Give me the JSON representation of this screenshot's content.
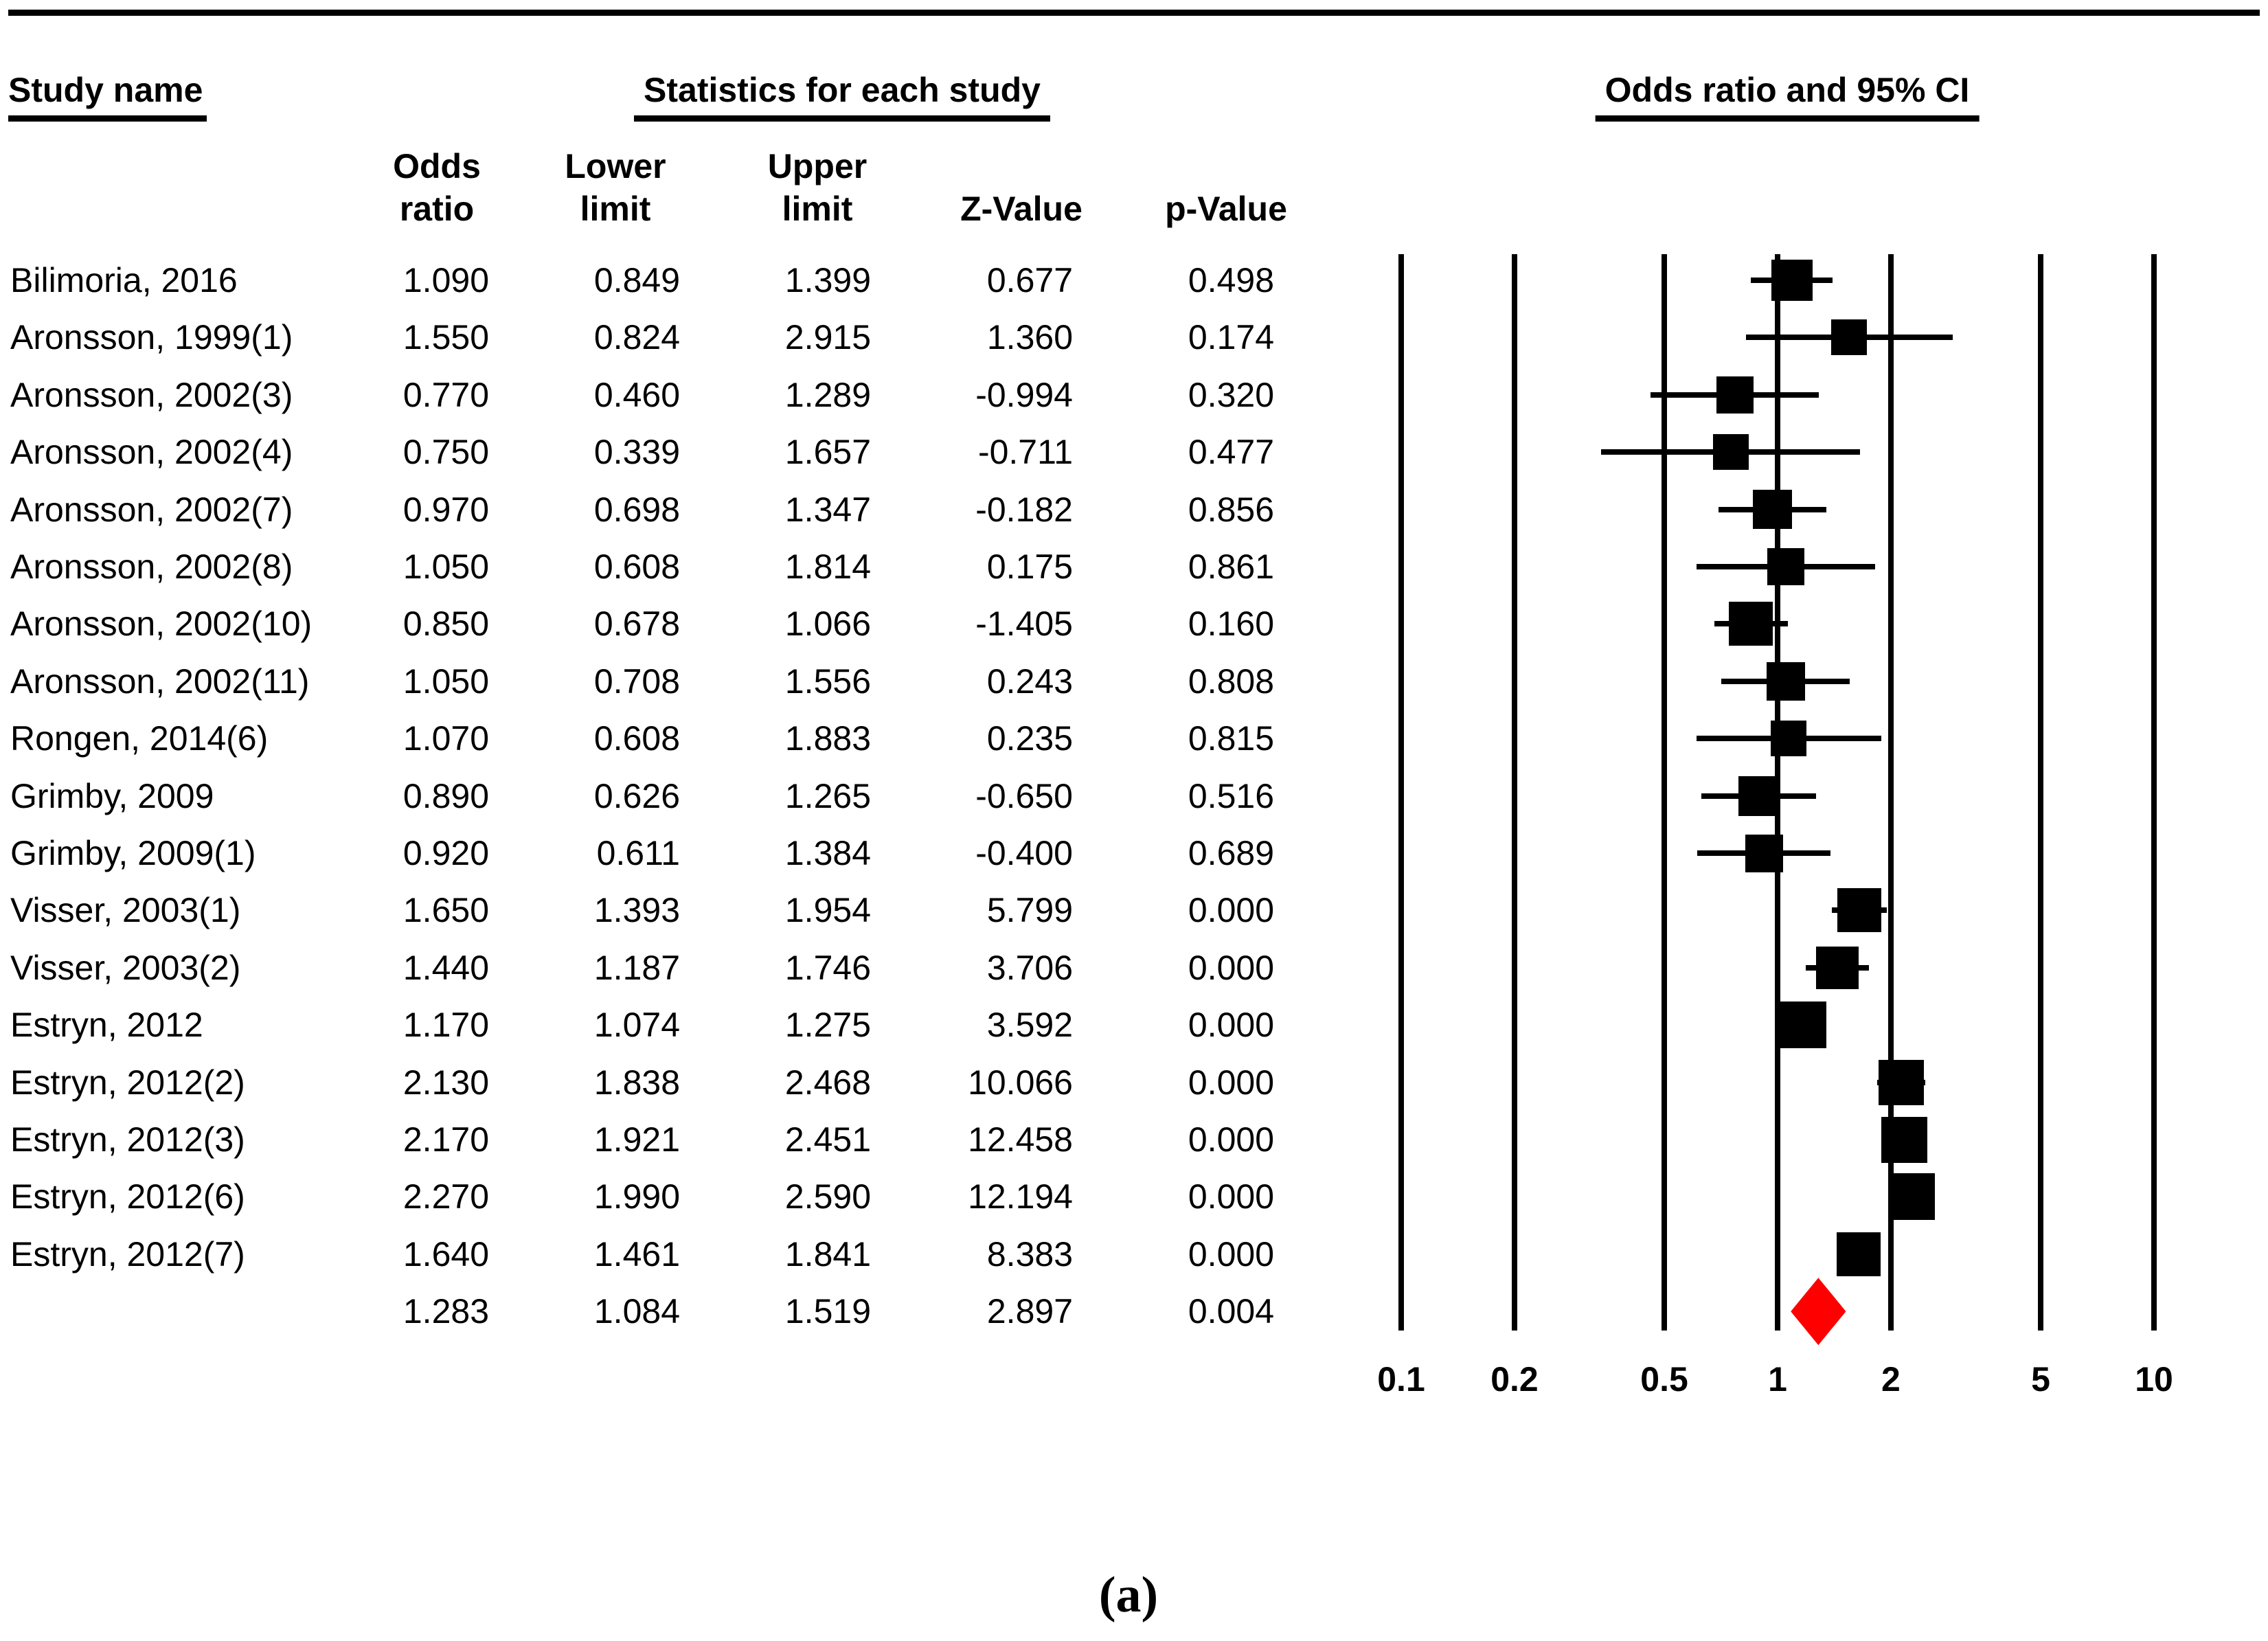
{
  "header": {
    "study_heading": "Study name",
    "stats_heading": "Statistics for each study",
    "plot_heading": "Odds ratio and 95% CI",
    "columns": [
      {
        "line1": "Odds",
        "line2": "ratio"
      },
      {
        "line1": "Lower",
        "line2": "limit"
      },
      {
        "line1": "Upper",
        "line2": "limit"
      },
      {
        "line1": "",
        "line2": "Z-Value"
      },
      {
        "line1": "",
        "line2": "p-Value"
      }
    ]
  },
  "caption": "(a)",
  "colors": {
    "marker": "#000000",
    "summary_diamond": "#FF0000",
    "line": "#000000"
  },
  "chart_data": {
    "type": "scatter",
    "subtype": "forest-plot",
    "title": "Odds ratio and 95% CI",
    "x_scale": "log10",
    "xlim": [
      0.1,
      10
    ],
    "x_ticks": [
      0.1,
      0.2,
      0.5,
      1,
      2,
      5,
      10
    ],
    "x_tick_labels": [
      "0.1",
      "0.2",
      "0.5",
      "1",
      "2",
      "5",
      "10"
    ],
    "grid": "vertical-reference-lines",
    "legend": "none",
    "studies": [
      {
        "name": "Bilimoria, 2016",
        "odds_ratio": 1.09,
        "lower": 0.849,
        "upper": 1.399,
        "z": 0.677,
        "p": 0.498,
        "marker_size": 60
      },
      {
        "name": "Aronsson, 1999(1)",
        "odds_ratio": 1.55,
        "lower": 0.824,
        "upper": 2.915,
        "z": 1.36,
        "p": 0.174,
        "marker_size": 52
      },
      {
        "name": "Aronsson, 2002(3)",
        "odds_ratio": 0.77,
        "lower": 0.46,
        "upper": 1.289,
        "z": -0.994,
        "p": 0.32,
        "marker_size": 54
      },
      {
        "name": "Aronsson, 2002(4)",
        "odds_ratio": 0.75,
        "lower": 0.339,
        "upper": 1.657,
        "z": -0.711,
        "p": 0.477,
        "marker_size": 52
      },
      {
        "name": "Aronsson, 2002(7)",
        "odds_ratio": 0.97,
        "lower": 0.698,
        "upper": 1.347,
        "z": -0.182,
        "p": 0.856,
        "marker_size": 57
      },
      {
        "name": "Aronsson, 2002(8)",
        "odds_ratio": 1.05,
        "lower": 0.608,
        "upper": 1.814,
        "z": 0.175,
        "p": 0.861,
        "marker_size": 54
      },
      {
        "name": "Aronsson, 2002(10)",
        "odds_ratio": 0.85,
        "lower": 0.678,
        "upper": 1.066,
        "z": -1.405,
        "p": 0.16,
        "marker_size": 64
      },
      {
        "name": "Aronsson, 2002(11)",
        "odds_ratio": 1.05,
        "lower": 0.708,
        "upper": 1.556,
        "z": 0.243,
        "p": 0.808,
        "marker_size": 56
      },
      {
        "name": "Rongen, 2014(6)",
        "odds_ratio": 1.07,
        "lower": 0.608,
        "upper": 1.883,
        "z": 0.235,
        "p": 0.815,
        "marker_size": 52
      },
      {
        "name": "Grimby, 2009",
        "odds_ratio": 0.89,
        "lower": 0.626,
        "upper": 1.265,
        "z": -0.65,
        "p": 0.516,
        "marker_size": 58
      },
      {
        "name": "Grimby, 2009(1)",
        "odds_ratio": 0.92,
        "lower": 0.611,
        "upper": 1.384,
        "z": -0.4,
        "p": 0.689,
        "marker_size": 55
      },
      {
        "name": "Visser, 2003(1)",
        "odds_ratio": 1.65,
        "lower": 1.393,
        "upper": 1.954,
        "z": 5.799,
        "p": 0.0,
        "marker_size": 64
      },
      {
        "name": "Visser, 2003(2)",
        "odds_ratio": 1.44,
        "lower": 1.187,
        "upper": 1.746,
        "z": 3.706,
        "p": 0.0,
        "marker_size": 62
      },
      {
        "name": "Estryn, 2012",
        "odds_ratio": 1.17,
        "lower": 1.074,
        "upper": 1.275,
        "z": 3.592,
        "p": 0.0,
        "marker_size": 68
      },
      {
        "name": "Estryn, 2012(2)",
        "odds_ratio": 2.13,
        "lower": 1.838,
        "upper": 2.468,
        "z": 10.066,
        "p": 0.0,
        "marker_size": 66
      },
      {
        "name": "Estryn, 2012(3)",
        "odds_ratio": 2.17,
        "lower": 1.921,
        "upper": 2.451,
        "z": 12.458,
        "p": 0.0,
        "marker_size": 67
      },
      {
        "name": "Estryn, 2012(6)",
        "odds_ratio": 2.27,
        "lower": 1.99,
        "upper": 2.59,
        "z": 12.194,
        "p": 0.0,
        "marker_size": 68
      },
      {
        "name": "Estryn, 2012(7)",
        "odds_ratio": 1.64,
        "lower": 1.461,
        "upper": 1.841,
        "z": 8.383,
        "p": 0.0,
        "marker_size": 64
      }
    ],
    "summary": {
      "name": "",
      "odds_ratio": 1.283,
      "lower": 1.084,
      "upper": 1.519,
      "z": 2.897,
      "p": 0.004
    }
  }
}
